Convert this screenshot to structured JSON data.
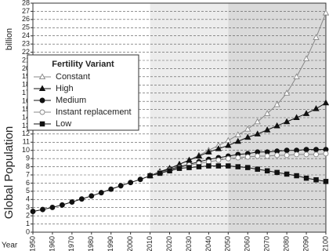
{
  "chart_data": {
    "type": "line",
    "y_label": "Global Population",
    "y_unit": "billion",
    "x_label": "Year",
    "x": [
      1950,
      1955,
      1960,
      1965,
      1970,
      1975,
      1980,
      1985,
      1990,
      1995,
      2000,
      2005,
      2010,
      2015,
      2020,
      2025,
      2030,
      2035,
      2040,
      2045,
      2050,
      2055,
      2060,
      2065,
      2070,
      2075,
      2080,
      2085,
      2090,
      2095,
      2100
    ],
    "xlim": [
      1950,
      2100
    ],
    "xticks": [
      1950,
      1960,
      1970,
      1980,
      1990,
      2000,
      2010,
      2020,
      2030,
      2040,
      2050,
      2060,
      2070,
      2080,
      2090,
      2100
    ],
    "ylim": [
      0,
      28
    ],
    "yticks": [
      0,
      1,
      2,
      3,
      4,
      5,
      6,
      7,
      8,
      9,
      10,
      11,
      12,
      13,
      14,
      15,
      16,
      17,
      18,
      19,
      20,
      21,
      22,
      23,
      24,
      25,
      26,
      27,
      28
    ],
    "grid": true,
    "spans": [
      {
        "from": 2010,
        "to": 2050,
        "color": "#ececec"
      },
      {
        "from": 2050,
        "to": 2100,
        "color": "#dadada"
      }
    ],
    "legend_title": "Fertility Variant",
    "legend_position": "upper left",
    "series": [
      {
        "name": "Constant",
        "color": "#888888",
        "marker": "triangle-open",
        "values": [
          null,
          null,
          null,
          null,
          null,
          null,
          null,
          null,
          null,
          null,
          null,
          null,
          6.9,
          7.3,
          7.8,
          8.3,
          8.8,
          9.4,
          10.0,
          10.6,
          11.2,
          11.9,
          12.6,
          13.5,
          14.5,
          15.6,
          17.0,
          19.0,
          21.2,
          23.8,
          26.8
        ]
      },
      {
        "name": "High",
        "color": "#111111",
        "marker": "triangle",
        "values": [
          null,
          null,
          null,
          null,
          null,
          null,
          null,
          null,
          null,
          null,
          null,
          null,
          6.9,
          7.4,
          7.8,
          8.3,
          8.8,
          9.3,
          9.8,
          10.2,
          10.6,
          11.1,
          11.6,
          12.0,
          12.5,
          13.0,
          13.5,
          14.0,
          14.5,
          15.1,
          15.8
        ]
      },
      {
        "name": "Medium",
        "color": "#111111",
        "marker": "circle",
        "values": [
          2.53,
          2.77,
          3.03,
          3.33,
          3.69,
          4.06,
          4.43,
          4.83,
          5.26,
          5.67,
          6.07,
          6.45,
          6.9,
          7.3,
          7.7,
          8.0,
          8.3,
          8.6,
          8.9,
          9.1,
          9.3,
          9.5,
          9.6,
          9.8,
          9.8,
          9.9,
          10.0,
          10.0,
          10.1,
          10.1,
          10.1
        ]
      },
      {
        "name": "Instant replacement",
        "color": "#888888",
        "marker": "circle-open",
        "values": [
          null,
          null,
          null,
          null,
          null,
          null,
          null,
          null,
          null,
          null,
          null,
          null,
          6.9,
          7.3,
          7.6,
          7.9,
          8.2,
          8.4,
          8.6,
          8.8,
          9.0,
          9.1,
          9.2,
          9.3,
          9.3,
          9.4,
          9.4,
          9.5,
          9.5,
          9.5,
          9.6
        ]
      },
      {
        "name": "Low",
        "color": "#111111",
        "marker": "square",
        "values": [
          null,
          null,
          null,
          null,
          null,
          null,
          null,
          null,
          null,
          null,
          null,
          null,
          6.9,
          7.2,
          7.5,
          7.8,
          7.9,
          8.0,
          8.1,
          8.1,
          8.1,
          8.0,
          7.9,
          7.7,
          7.5,
          7.3,
          7.1,
          6.9,
          6.6,
          6.4,
          6.2
        ]
      }
    ]
  }
}
